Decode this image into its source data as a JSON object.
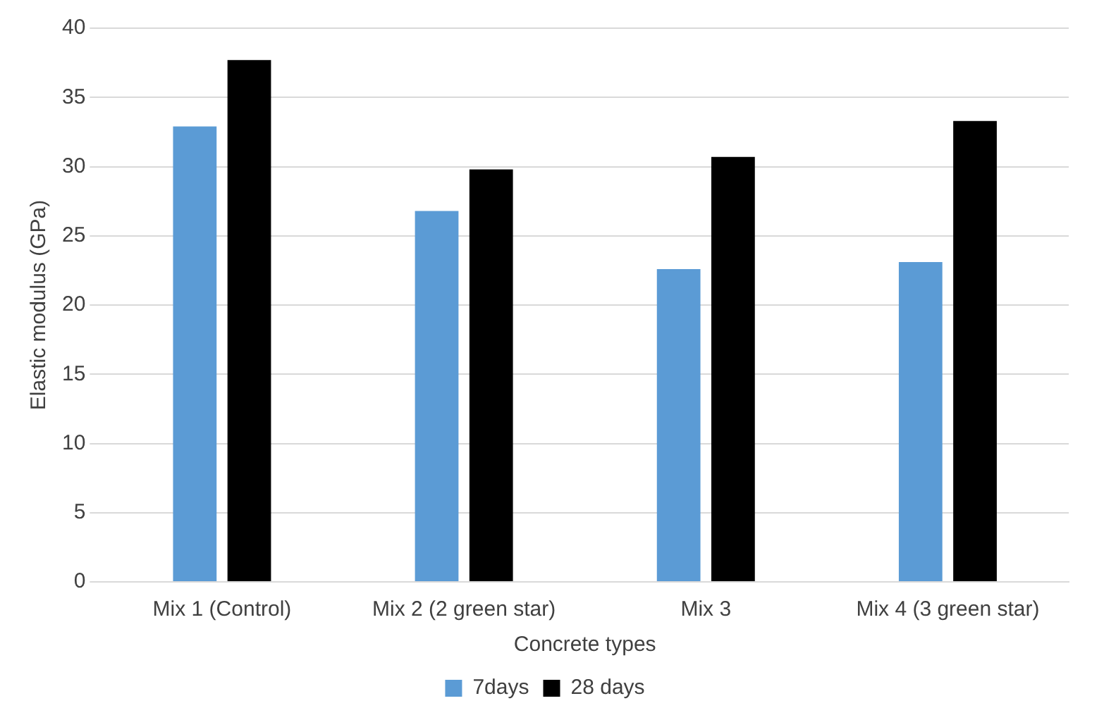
{
  "chart_data": {
    "type": "bar",
    "xlabel": "Concrete types",
    "ylabel": "Elastic modulus (GPa)",
    "categories": [
      "Mix 1 (Control)",
      "Mix 2 (2 green star)",
      "Mix 3",
      "Mix 4 (3 green star)"
    ],
    "series": [
      {
        "name": "7days",
        "color": "#5b9bd5",
        "values": [
          32.9,
          26.8,
          22.6,
          23.1
        ]
      },
      {
        "name": "28 days",
        "color": "#000000",
        "values": [
          37.7,
          29.8,
          30.7,
          33.3
        ]
      }
    ],
    "ylim": [
      0,
      40
    ],
    "yticks": [
      0,
      5,
      10,
      15,
      20,
      25,
      30,
      35,
      40
    ],
    "grid": "y",
    "legend": "bottom"
  }
}
